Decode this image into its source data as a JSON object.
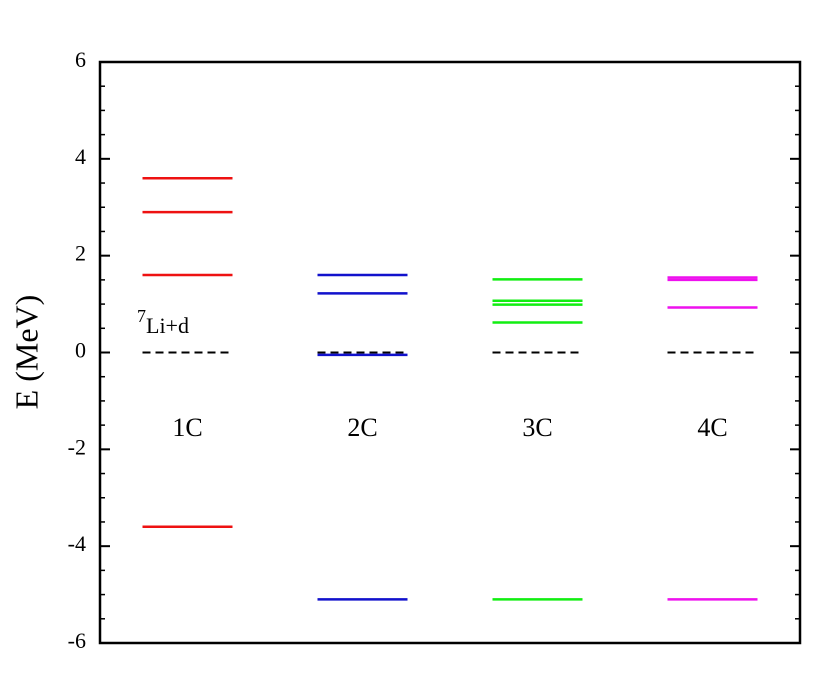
{
  "chart_data": {
    "type": "levels",
    "ylabel": "E (MeV)",
    "ylim": [
      -6,
      6
    ],
    "yticks": [
      -6,
      -4,
      -2,
      0,
      2,
      4,
      6
    ],
    "yminorticks": [
      -5.5,
      -5,
      -4.5,
      -3.5,
      -3,
      -2.5,
      -1.5,
      -1,
      -0.5,
      0.5,
      1,
      1.5,
      2.5,
      3,
      3.5,
      4.5,
      5,
      5.5
    ],
    "threshold": 0,
    "threshold_color": "#000000",
    "annotation": {
      "superscript": "7",
      "text": "Li+d"
    },
    "series": [
      {
        "name": "1C",
        "color": "#ee1111",
        "values": [
          3.6,
          2.9,
          1.6,
          -3.6
        ]
      },
      {
        "name": "2C",
        "color": "#1111cc",
        "values": [
          1.6,
          1.22,
          -0.05,
          -5.1
        ]
      },
      {
        "name": "3C",
        "color": "#11ee11",
        "values": [
          1.51,
          1.07,
          0.99,
          0.62,
          -5.1
        ]
      },
      {
        "name": "4C",
        "color": "#ee11ee",
        "values": [
          1.55,
          1.5,
          0.93,
          -5.1
        ]
      }
    ]
  }
}
